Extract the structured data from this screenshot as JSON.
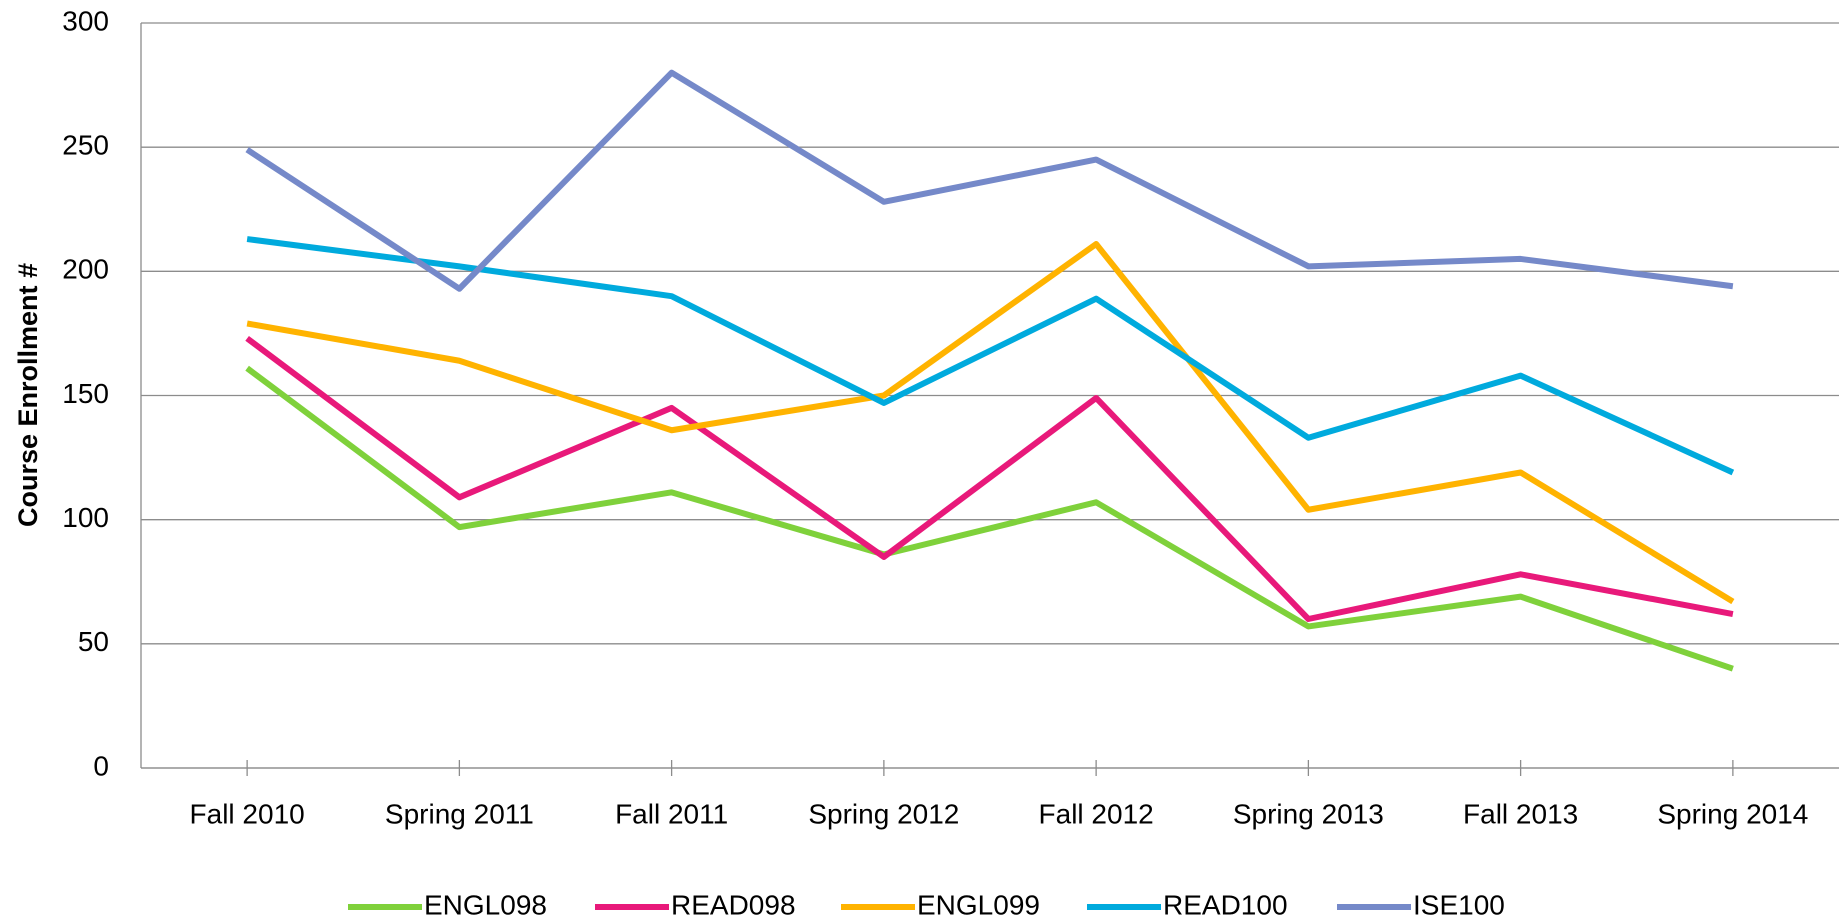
{
  "chart_data": {
    "type": "line",
    "y_label": "Course Enrollment #",
    "categories": [
      "Fall 2010",
      "Spring 2011",
      "Fall 2011",
      "Spring 2012",
      "Fall 2012",
      "Spring 2013",
      "Fall 2013",
      "Spring 2014"
    ],
    "series": [
      {
        "name": "ENGL098",
        "color": "#7fd13b",
        "values": [
          161,
          97,
          111,
          86,
          107,
          57,
          69,
          40
        ]
      },
      {
        "name": "READ098",
        "color": "#e8197a",
        "values": [
          173,
          109,
          145,
          85,
          149,
          60,
          78,
          62
        ]
      },
      {
        "name": "ENGL099",
        "color": "#ffb300",
        "values": [
          179,
          164,
          136,
          150,
          211,
          104,
          119,
          67
        ]
      },
      {
        "name": "READ100",
        "color": "#00aadd",
        "values": [
          213,
          202,
          190,
          147,
          189,
          133,
          158,
          119
        ]
      },
      {
        "name": "ISE100",
        "color": "#7589c9",
        "values": [
          249,
          193,
          280,
          228,
          245,
          202,
          205,
          194
        ]
      }
    ],
    "ylim": [
      0,
      300
    ],
    "yticks": [
      0,
      50,
      100,
      150,
      200,
      250,
      300
    ],
    "grid": true,
    "legend": "bottom"
  }
}
